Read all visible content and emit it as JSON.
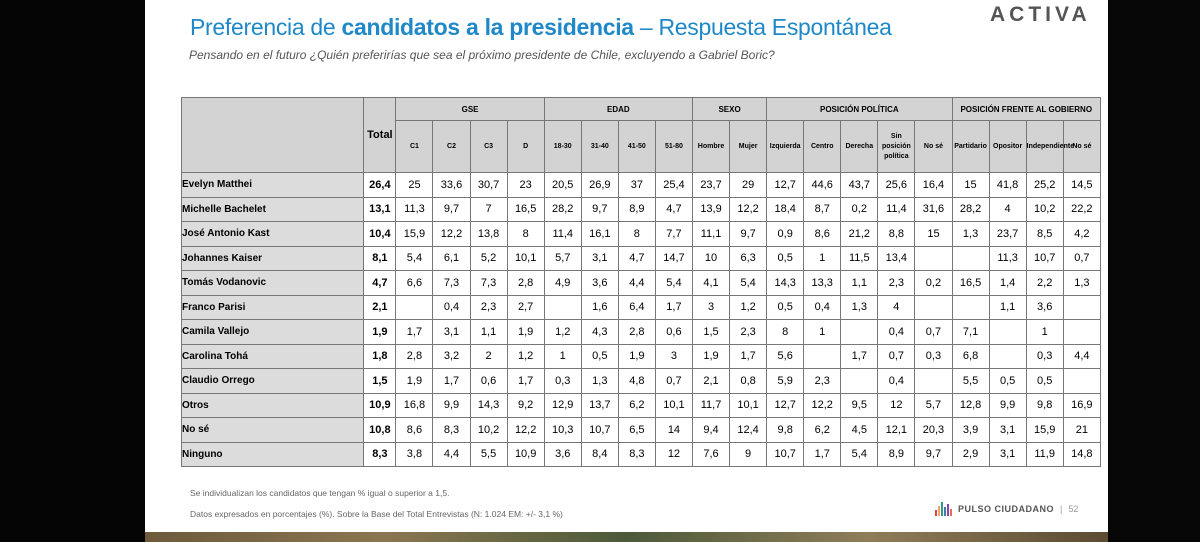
{
  "header": {
    "title_part1": "Preferencia de ",
    "title_bold": "candidatos a la presidencia",
    "title_part2": " – Respuesta Espontánea",
    "subtitle": "Pensando en el futuro ¿Quién preferirías que sea el próximo presidente de Chile, excluyendo a Gabriel Boric?",
    "logo": "ACTIVA"
  },
  "table": {
    "total_label": "Total",
    "groups": [
      {
        "label": "GSE",
        "cols": [
          "C1",
          "C2",
          "C3",
          "D"
        ]
      },
      {
        "label": "EDAD",
        "cols": [
          "18-30",
          "31-40",
          "41-50",
          "51-80"
        ]
      },
      {
        "label": "SEXO",
        "cols": [
          "Hombre",
          "Mujer"
        ]
      },
      {
        "label": "POSICIÓN POLÍTICA",
        "cols": [
          "Izquierda",
          "Centro",
          "Derecha",
          "Sin posición política",
          "No sé"
        ]
      },
      {
        "label": "POSICIÓN FRENTE AL GOBIERNO",
        "cols": [
          "Partidario",
          "Opositor",
          "Independiente",
          "No sé"
        ]
      }
    ],
    "rows": [
      {
        "name": "Evelyn Matthei",
        "total": "26,4",
        "values": [
          "25",
          "33,6",
          "30,7",
          "23",
          "20,5",
          "26,9",
          "37",
          "25,4",
          "23,7",
          "29",
          "12,7",
          "44,6",
          "43,7",
          "25,6",
          "16,4",
          "15",
          "41,8",
          "25,2",
          "14,5"
        ]
      },
      {
        "name": "Michelle Bachelet",
        "total": "13,1",
        "values": [
          "11,3",
          "9,7",
          "7",
          "16,5",
          "28,2",
          "9,7",
          "8,9",
          "4,7",
          "13,9",
          "12,2",
          "18,4",
          "8,7",
          "0,2",
          "11,4",
          "31,6",
          "28,2",
          "4",
          "10,2",
          "22,2"
        ]
      },
      {
        "name": "José Antonio Kast",
        "total": "10,4",
        "values": [
          "15,9",
          "12,2",
          "13,8",
          "8",
          "11,4",
          "16,1",
          "8",
          "7,7",
          "11,1",
          "9,7",
          "0,9",
          "8,6",
          "21,2",
          "8,8",
          "15",
          "1,3",
          "23,7",
          "8,5",
          "4,2"
        ]
      },
      {
        "name": "Johannes Kaiser",
        "total": "8,1",
        "values": [
          "5,4",
          "6,1",
          "5,2",
          "10,1",
          "5,7",
          "3,1",
          "4,7",
          "14,7",
          "10",
          "6,3",
          "0,5",
          "1",
          "11,5",
          "13,4",
          "",
          "",
          "11,3",
          "10,7",
          "0,7"
        ]
      },
      {
        "name": "Tomás Vodanovic",
        "total": "4,7",
        "values": [
          "6,6",
          "7,3",
          "7,3",
          "2,8",
          "4,9",
          "3,6",
          "4,4",
          "5,4",
          "4,1",
          "5,4",
          "14,3",
          "13,3",
          "1,1",
          "2,3",
          "0,2",
          "16,5",
          "1,4",
          "2,2",
          "1,3"
        ]
      },
      {
        "name": "Franco Parisi",
        "total": "2,1",
        "values": [
          "",
          "0,4",
          "2,3",
          "2,7",
          "",
          "1,6",
          "6,4",
          "1,7",
          "3",
          "1,2",
          "0,5",
          "0,4",
          "1,3",
          "4",
          "",
          "",
          "1,1",
          "3,6",
          ""
        ]
      },
      {
        "name": "Camila Vallejo",
        "total": "1,9",
        "values": [
          "1,7",
          "3,1",
          "1,1",
          "1,9",
          "1,2",
          "4,3",
          "2,8",
          "0,6",
          "1,5",
          "2,3",
          "8",
          "1",
          "",
          "0,4",
          "0,7",
          "7,1",
          "",
          "1",
          ""
        ]
      },
      {
        "name": "Carolina Tohá",
        "total": "1,8",
        "values": [
          "2,8",
          "3,2",
          "2",
          "1,2",
          "1",
          "0,5",
          "1,9",
          "3",
          "1,9",
          "1,7",
          "5,6",
          "",
          "1,7",
          "0,7",
          "0,3",
          "6,8",
          "",
          "0,3",
          "4,4"
        ]
      },
      {
        "name": "Claudio Orrego",
        "total": "1,5",
        "values": [
          "1,9",
          "1,7",
          "0,6",
          "1,7",
          "0,3",
          "1,3",
          "4,8",
          "0,7",
          "2,1",
          "0,8",
          "5,9",
          "2,3",
          "",
          "0,4",
          "",
          "5,5",
          "0,5",
          "0,5",
          ""
        ]
      },
      {
        "name": "Otros",
        "total": "10,9",
        "values": [
          "16,8",
          "9,9",
          "14,3",
          "9,2",
          "12,9",
          "13,7",
          "6,2",
          "10,1",
          "11,7",
          "10,1",
          "12,7",
          "12,2",
          "9,5",
          "12",
          "5,7",
          "12,8",
          "9,9",
          "9,8",
          "16,9"
        ]
      },
      {
        "name": "No sé",
        "total": "10,8",
        "values": [
          "8,6",
          "8,3",
          "10,2",
          "12,2",
          "10,3",
          "10,7",
          "6,5",
          "14",
          "9,4",
          "12,4",
          "9,8",
          "6,2",
          "4,5",
          "12,1",
          "20,3",
          "3,9",
          "3,1",
          "15,9",
          "21"
        ]
      },
      {
        "name": "Ninguno",
        "total": "8,3",
        "values": [
          "3,8",
          "4,4",
          "5,5",
          "10,9",
          "3,6",
          "8,4",
          "8,3",
          "12",
          "7,6",
          "9",
          "10,7",
          "1,7",
          "5,4",
          "8,9",
          "9,7",
          "2,9",
          "3,1",
          "11,9",
          "14,8"
        ]
      }
    ]
  },
  "footer": {
    "note1": "Se individualizan los candidatos que tengan % igual o superior a 1,5.",
    "note2": "Datos expresados en porcentajes (%). Sobre la Base del Total Entrevistas (N: 1.024  EM: +/- 3,1 %)",
    "brand": "PULSO CIUDADANO",
    "page": "52",
    "brand_colors": [
      "#e63946",
      "#f4a261",
      "#2a9d8f",
      "#457b9d",
      "#8e44ad",
      "#e76f51"
    ]
  },
  "colors": {
    "title": "#1e88c8",
    "header_bg": "#d3d3d3",
    "name_bg": "#dcdcdc"
  }
}
